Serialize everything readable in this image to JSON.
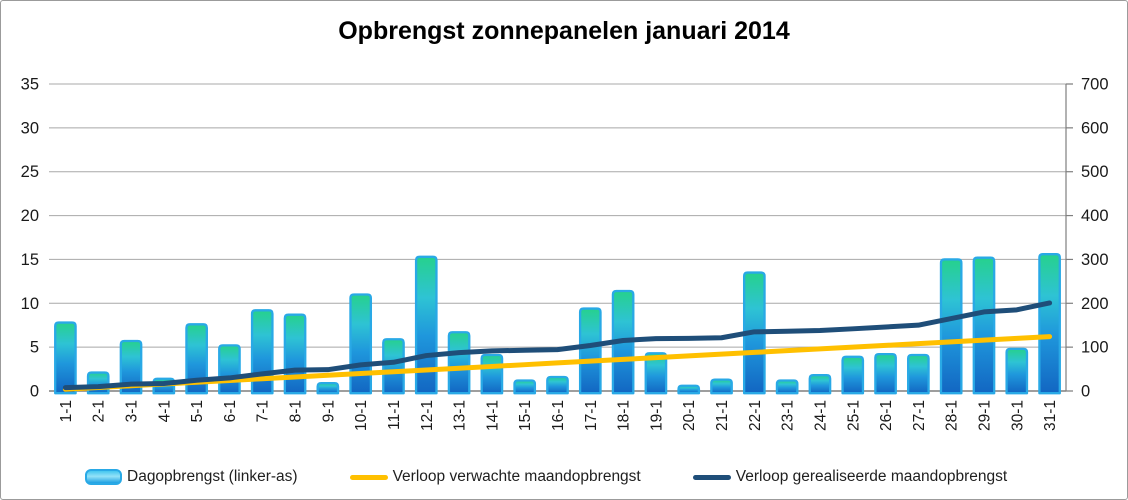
{
  "title": "Opbrengst zonnepanelen januari 2014",
  "chart_data": {
    "type": "combo-bar-line",
    "title": "Opbrengst zonnepanelen januari 2014",
    "categories": [
      "1-1",
      "2-1",
      "3-1",
      "4-1",
      "5-1",
      "6-1",
      "7-1",
      "8-1",
      "9-1",
      "10-1",
      "11-1",
      "12-1",
      "13-1",
      "14-1",
      "15-1",
      "16-1",
      "17-1",
      "18-1",
      "19-1",
      "20-1",
      "21-1",
      "22-1",
      "23-1",
      "24-1",
      "25-1",
      "26-1",
      "27-1",
      "28-1",
      "29-1",
      "30-1",
      "31-1"
    ],
    "series": [
      {
        "name": "Dagopbrengst (linker-as)",
        "type": "bar",
        "axis": "left",
        "values": [
          7.8,
          2.1,
          5.7,
          1.4,
          7.6,
          5.2,
          9.2,
          8.7,
          0.9,
          11.0,
          5.9,
          15.3,
          6.7,
          4.1,
          1.2,
          1.6,
          9.4,
          11.4,
          4.3,
          0.6,
          1.3,
          13.5,
          1.2,
          1.8,
          3.9,
          4.2,
          4.1,
          15.0,
          15.2,
          4.8,
          15.6
        ]
      },
      {
        "name": "Verloop verwachte maandopbrengst",
        "type": "line",
        "axis": "right",
        "color": "#FFC000",
        "values": [
          4,
          8,
          12,
          16,
          20,
          24,
          28,
          32,
          36,
          40,
          44,
          48,
          52,
          56,
          60,
          64,
          68,
          72,
          76,
          80,
          84,
          88,
          92,
          96,
          100,
          104,
          108,
          112,
          116,
          120,
          124
        ]
      },
      {
        "name": "Verloop gerealiseerde maandopbrengst",
        "type": "line",
        "axis": "right",
        "color": "#1F4E79",
        "values": [
          7.8,
          9.9,
          15.6,
          17.0,
          24.6,
          29.8,
          39.0,
          47.7,
          48.6,
          59.6,
          65.5,
          80.8,
          87.5,
          91.6,
          92.8,
          94.4,
          103.8,
          115.2,
          119.5,
          120.1,
          121.4,
          134.9,
          136.1,
          137.9,
          141.8,
          146.0,
          150.1,
          165.1,
          180.3,
          185.1,
          200.7
        ]
      }
    ],
    "left_axis": {
      "range": [
        0,
        35
      ],
      "ticks": [
        0,
        5,
        10,
        15,
        20,
        25,
        30,
        35
      ]
    },
    "right_axis": {
      "range": [
        0,
        700
      ],
      "ticks": [
        0,
        100,
        200,
        300,
        400,
        500,
        600,
        700
      ]
    },
    "grid": true,
    "legend_position": "bottom"
  },
  "colors": {
    "bar_border": "#29a9e6",
    "bar_gradient_top": "#26d18d",
    "bar_gradient_mid1": "#2ec3d4",
    "bar_gradient_mid2": "#1f97dc",
    "bar_gradient_bottom": "#1266c2",
    "expected_line": "#FFC000",
    "realized_line": "#1F4E79",
    "gridline": "#a8a8a8",
    "axis_line": "#7f7f7f",
    "axis_text": "#1a1a1a"
  }
}
